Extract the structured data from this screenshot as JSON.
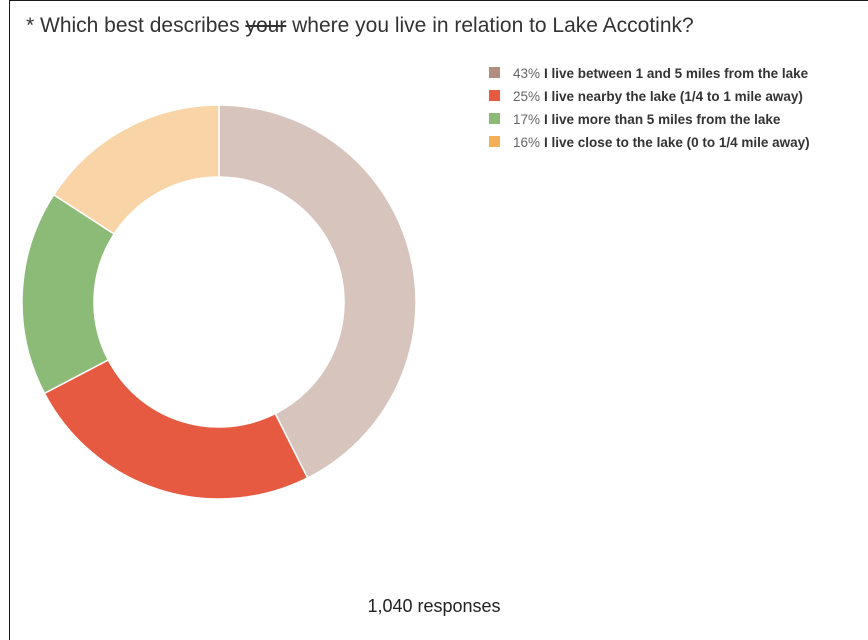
{
  "question": {
    "prefix": "* Which best describes ",
    "struck": "your",
    "suffix": " where you live in relation to Lake Accotink?"
  },
  "responses": "1,040 responses",
  "chart_data": {
    "type": "pie",
    "donut": true,
    "slices": [
      {
        "pct_label": "43%",
        "value": 43,
        "label": "I live between 1 and 5 miles from the lake",
        "color": "#d7c4bc",
        "swatch": "#b08f80"
      },
      {
        "pct_label": "25%",
        "value": 25,
        "label": "I live nearby the lake (1/4 to 1 mile away)",
        "color": "#e55a40",
        "swatch": "#e55a40"
      },
      {
        "pct_label": "17%",
        "value": 17,
        "label": "I live more than 5 miles from the lake",
        "color": "#8cbb78",
        "swatch": "#8cbb78"
      },
      {
        "pct_label": "16%",
        "value": 16,
        "label": "I live close to the lake (0 to 1/4 mile away)",
        "color": "#f8d4a6",
        "swatch": "#f4b057"
      }
    ],
    "legend_position": "right"
  }
}
